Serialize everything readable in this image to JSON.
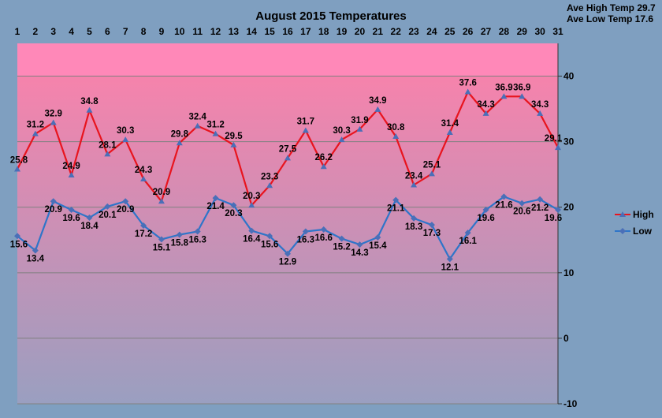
{
  "chart_data": {
    "type": "line",
    "title": "August 2015 Temperatures",
    "notes": [
      "Ave High Temp 29.7",
      "Ave Low Temp 17.6"
    ],
    "x": [
      1,
      2,
      3,
      4,
      5,
      6,
      7,
      8,
      9,
      10,
      11,
      12,
      13,
      14,
      15,
      16,
      17,
      18,
      19,
      20,
      21,
      22,
      23,
      24,
      25,
      26,
      27,
      28,
      29,
      30,
      31
    ],
    "x_tick_labels": [
      "1",
      "2",
      "3",
      "4",
      "5",
      "6",
      "7",
      "8",
      "9",
      "10",
      "11",
      "12",
      "13",
      "14",
      "15",
      "16",
      "17",
      "18",
      "19",
      "20",
      "21",
      "22",
      "23",
      "24",
      "25",
      "26",
      "27",
      "28",
      "29",
      "30",
      "31"
    ],
    "ylim": [
      -10,
      45
    ],
    "y_ticks": [
      -10,
      0,
      10,
      20,
      30,
      40
    ],
    "y_tick_labels": [
      "-10",
      "0",
      "10",
      "20",
      "30",
      "40"
    ],
    "grid": true,
    "legend_position": "right",
    "series": [
      {
        "name": "High",
        "color": "#e8141e",
        "values": [
          25.8,
          31.2,
          32.9,
          24.9,
          34.8,
          28.1,
          30.3,
          24.3,
          20.9,
          29.8,
          32.4,
          31.2,
          29.5,
          20.3,
          23.3,
          27.5,
          31.7,
          26.2,
          30.3,
          31.9,
          34.9,
          30.8,
          23.4,
          25.1,
          31.4,
          37.6,
          34.3,
          36.9,
          36.9,
          34.3,
          29.1
        ],
        "labels": [
          "25.8",
          "31.2",
          "32.9",
          "24.9",
          "34.8",
          "28.1",
          "30.3",
          "24.3",
          "20.9",
          "29.8",
          "32.4",
          "31.2",
          "29.5",
          "20.3",
          "23.3",
          "27.5",
          "31.7",
          "26.2",
          "30.3",
          "31.9",
          "34.9",
          "30.8",
          "23.4",
          "25.1",
          "31.4",
          "37.6",
          "34.3",
          "36.9",
          "36.9",
          "34.3",
          "29.1"
        ]
      },
      {
        "name": "Low",
        "color": "#2e75c9",
        "values": [
          15.6,
          13.4,
          20.9,
          19.6,
          18.4,
          20.1,
          20.9,
          17.2,
          15.1,
          15.8,
          16.3,
          21.4,
          20.3,
          16.4,
          15.6,
          12.9,
          16.3,
          16.6,
          15.2,
          14.3,
          15.4,
          21.1,
          18.3,
          17.3,
          12.1,
          16.1,
          19.6,
          21.6,
          20.6,
          21.2,
          19.6
        ],
        "labels": [
          "15.6",
          "13.4",
          "20.9",
          "19.6",
          "18.4",
          "20.1",
          "20.9",
          "17.2",
          "15.1",
          "15.8",
          "16.3",
          "21.4",
          "20.3",
          "16.4",
          "15.6",
          "12.9",
          "16.3",
          "16.6",
          "15.2",
          "14.3",
          "15.4",
          "21.1",
          "18.3",
          "17.3",
          "12.1",
          "16.1",
          "19.6",
          "21.6",
          "20.6",
          "21.2",
          "19.6"
        ]
      }
    ],
    "background_gradient": [
      "#ff80aa",
      "#9a9fc0"
    ],
    "top_band_color": "#ff88b8"
  }
}
